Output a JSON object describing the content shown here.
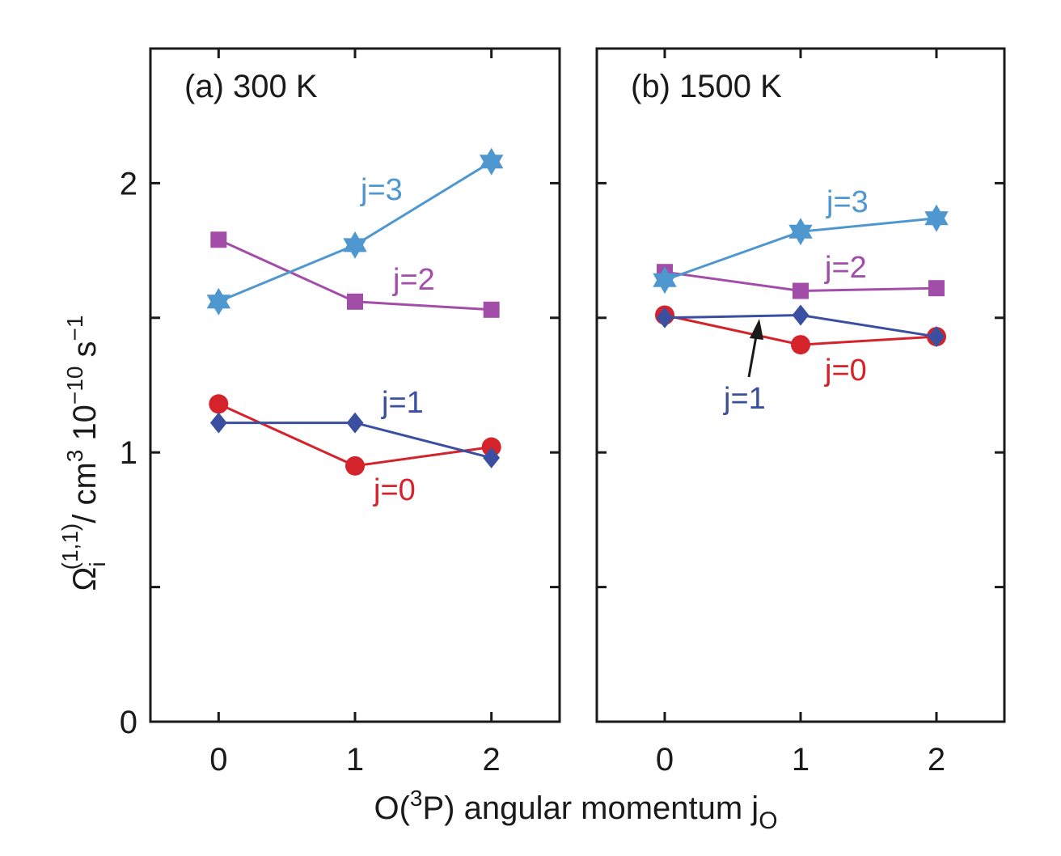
{
  "chart_data": {
    "type": "line",
    "ylabel": {
      "symbol": "Ω",
      "subscript": "i",
      "superscript": "(1,1)",
      "unit_prefix": "/ cm",
      "unit_exp1": "3",
      "scale": " 10",
      "scale_exp": "−10",
      "unit_s": " s",
      "unit_exp2": "−1"
    },
    "xlabel": {
      "prefix": "O(",
      "superscript": "3",
      "middle": "P) angular momentum j",
      "subscript": "O"
    },
    "ylim": [
      0,
      2.5
    ],
    "yticks": [
      0,
      1,
      2
    ],
    "yticks_minor": [
      0.5,
      1.5,
      2.5
    ],
    "xlim": [
      -0.5,
      2.5
    ],
    "xticks": [
      0,
      1,
      2
    ],
    "x": [
      0,
      1,
      2
    ],
    "grid": false,
    "legend": "none",
    "panels": [
      {
        "label": "(a)  300 K",
        "series": [
          {
            "name": "j=0",
            "color": "#d4232b",
            "marker": "circle",
            "values": [
              1.18,
              0.95,
              1.02
            ]
          },
          {
            "name": "j=1",
            "color": "#3a4fa0",
            "marker": "diamond",
            "values": [
              1.11,
              1.11,
              0.98
            ]
          },
          {
            "name": "j=2",
            "color": "#a24ea8",
            "marker": "square",
            "values": [
              1.79,
              1.56,
              1.53
            ]
          },
          {
            "name": "j=3",
            "color": "#4f97cf",
            "marker": "star",
            "values": [
              1.56,
              1.77,
              2.08
            ]
          }
        ]
      },
      {
        "label": "(b)  1500 K",
        "series": [
          {
            "name": "j=0",
            "color": "#d4232b",
            "marker": "circle",
            "values": [
              1.51,
              1.4,
              1.43
            ]
          },
          {
            "name": "j=1",
            "color": "#3a4fa0",
            "marker": "diamond",
            "values": [
              1.5,
              1.51,
              1.43
            ]
          },
          {
            "name": "j=2",
            "color": "#a24ea8",
            "marker": "square",
            "values": [
              1.67,
              1.6,
              1.61
            ]
          },
          {
            "name": "j=3",
            "color": "#4f97cf",
            "marker": "star",
            "values": [
              1.64,
              1.82,
              1.87
            ]
          }
        ]
      }
    ]
  }
}
